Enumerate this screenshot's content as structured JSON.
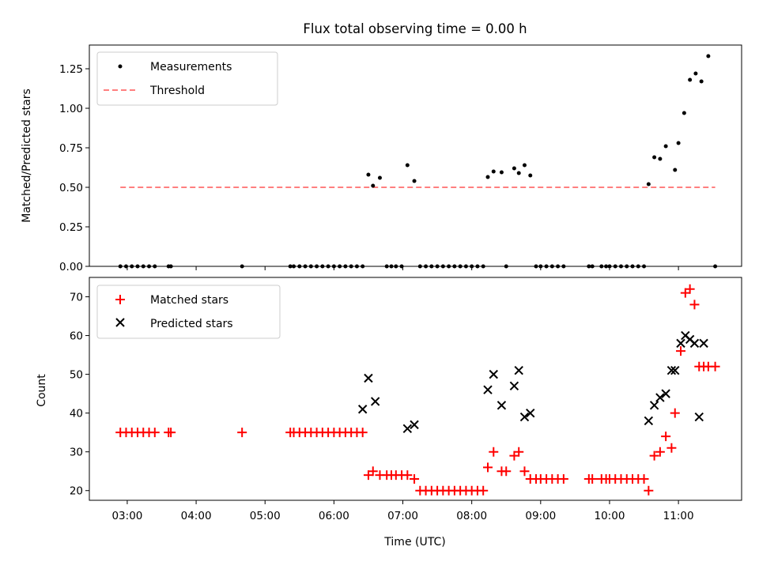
{
  "chart_data": [
    {
      "type": "scatter",
      "title": "Flux total observing time = 0.00 h",
      "xlabel": "",
      "ylabel": "Matched/Predicted stars",
      "xlim": [
        "02:27",
        "11:55"
      ],
      "ylim": [
        0,
        1.4
      ],
      "yticks": [
        "0.00",
        "0.25",
        "0.50",
        "0.75",
        "1.00",
        "1.25"
      ],
      "legend_position": "upper-left",
      "series": [
        {
          "name": "Measurements",
          "marker": "dot",
          "color": "#000000",
          "x": [
            "02:54",
            "02:59",
            "03:04",
            "03:09",
            "03:14",
            "03:19",
            "03:24",
            "03:36",
            "03:38",
            "04:40",
            "05:22",
            "05:25",
            "05:30",
            "05:35",
            "05:40",
            "05:45",
            "05:50",
            "05:55",
            "06:00",
            "06:05",
            "06:10",
            "06:15",
            "06:20",
            "06:25",
            "06:30",
            "06:34",
            "06:40",
            "06:46",
            "06:50",
            "06:54",
            "06:59",
            "07:04",
            "07:10",
            "07:15",
            "07:20",
            "07:25",
            "07:30",
            "07:35",
            "07:40",
            "07:45",
            "07:50",
            "07:55",
            "08:00",
            "08:05",
            "08:10",
            "08:14",
            "08:19",
            "08:26",
            "08:30",
            "08:37",
            "08:41",
            "08:46",
            "08:51",
            "08:56",
            "09:00",
            "09:05",
            "09:10",
            "09:15",
            "09:20",
            "09:42",
            "09:45",
            "09:53",
            "09:57",
            "10:00",
            "10:05",
            "10:10",
            "10:15",
            "10:20",
            "10:25",
            "10:30",
            "10:34",
            "10:39",
            "10:44",
            "10:49",
            "10:57",
            "11:00",
            "11:05",
            "11:10",
            "11:15",
            "11:20",
            "11:26",
            "11:32"
          ],
          "y": [
            0,
            0,
            0,
            0,
            0,
            0,
            0,
            0,
            0,
            0,
            0,
            0,
            0,
            0,
            0,
            0,
            0,
            0,
            0,
            0,
            0,
            0,
            0,
            0,
            0.58,
            0.51,
            0.56,
            0,
            0,
            0,
            0,
            0.64,
            0.54,
            0,
            0,
            0,
            0,
            0,
            0,
            0,
            0,
            0,
            0,
            0,
            0,
            0.565,
            0.6,
            0.595,
            0,
            0.62,
            0.59,
            0.64,
            0.575,
            0,
            0,
            0,
            0,
            0,
            0,
            0,
            0,
            0,
            0,
            0,
            0,
            0,
            0,
            0,
            0,
            0,
            0.52,
            0.69,
            0.68,
            0.76,
            0.61,
            0.78,
            0.97,
            1.18,
            1.22,
            1.17,
            1.33,
            0
          ]
        },
        {
          "name": "Threshold",
          "marker": "dashed-line",
          "color": "#ff7f7f",
          "x": [
            "02:54",
            "11:32"
          ],
          "y": [
            0.5,
            0.5
          ]
        }
      ]
    },
    {
      "type": "scatter",
      "title": "",
      "xlabel": "Time (UTC)",
      "ylabel": "Count",
      "xlim": [
        "02:27",
        "11:55"
      ],
      "ylim": [
        17.5,
        75
      ],
      "xticks": [
        "03:00",
        "04:00",
        "05:00",
        "06:00",
        "07:00",
        "08:00",
        "09:00",
        "10:00",
        "11:00"
      ],
      "yticks": [
        "20",
        "30",
        "40",
        "50",
        "60",
        "70"
      ],
      "legend_position": "upper-left",
      "series": [
        {
          "name": "Matched stars",
          "marker": "plus",
          "color": "#ff0000",
          "x": [
            "02:54",
            "02:59",
            "03:04",
            "03:09",
            "03:14",
            "03:19",
            "03:24",
            "03:36",
            "03:38",
            "04:40",
            "05:22",
            "05:25",
            "05:30",
            "05:35",
            "05:40",
            "05:45",
            "05:50",
            "05:55",
            "06:00",
            "06:05",
            "06:10",
            "06:15",
            "06:20",
            "06:25",
            "06:30",
            "06:34",
            "06:40",
            "06:46",
            "06:50",
            "06:54",
            "06:59",
            "07:04",
            "07:10",
            "07:15",
            "07:20",
            "07:25",
            "07:30",
            "07:35",
            "07:40",
            "07:45",
            "07:50",
            "07:55",
            "08:00",
            "08:05",
            "08:10",
            "08:14",
            "08:19",
            "08:26",
            "08:30",
            "08:37",
            "08:41",
            "08:46",
            "08:51",
            "08:56",
            "09:00",
            "09:05",
            "09:10",
            "09:15",
            "09:20",
            "09:42",
            "09:45",
            "09:53",
            "09:57",
            "10:00",
            "10:05",
            "10:10",
            "10:15",
            "10:20",
            "10:25",
            "10:30",
            "10:34",
            "10:39",
            "10:44",
            "10:49",
            "10:54",
            "10:57",
            "11:02",
            "11:06",
            "11:10",
            "11:14",
            "11:18",
            "11:22",
            "11:26",
            "11:32"
          ],
          "y": [
            35,
            35,
            35,
            35,
            35,
            35,
            35,
            35,
            35,
            35,
            35,
            35,
            35,
            35,
            35,
            35,
            35,
            35,
            35,
            35,
            35,
            35,
            35,
            35,
            24,
            25,
            24,
            24,
            24,
            24,
            24,
            24,
            23,
            20,
            20,
            20,
            20,
            20,
            20,
            20,
            20,
            20,
            20,
            20,
            20,
            26,
            30,
            25,
            25,
            29,
            30,
            25,
            23,
            23,
            23,
            23,
            23,
            23,
            23,
            23,
            23,
            23,
            23,
            23,
            23,
            23,
            23,
            23,
            23,
            23,
            20,
            29,
            30,
            34,
            31,
            40,
            56,
            71,
            72,
            68,
            52,
            52,
            52,
            52
          ]
        },
        {
          "name": "Predicted stars",
          "marker": "x",
          "color": "#000000",
          "x": [
            "06:25",
            "06:30",
            "06:36",
            "07:04",
            "07:10",
            "08:14",
            "08:19",
            "08:26",
            "08:37",
            "08:41",
            "08:46",
            "08:51",
            "10:34",
            "10:39",
            "10:44",
            "10:49",
            "10:54",
            "10:57",
            "11:02",
            "11:06",
            "11:10",
            "11:14",
            "11:18",
            "11:22"
          ],
          "y": [
            41,
            49,
            43,
            36,
            37,
            46,
            50,
            42,
            47,
            51,
            39,
            40,
            38,
            42,
            44,
            45,
            51,
            51,
            58,
            60,
            59,
            58,
            39,
            58
          ]
        }
      ]
    }
  ]
}
